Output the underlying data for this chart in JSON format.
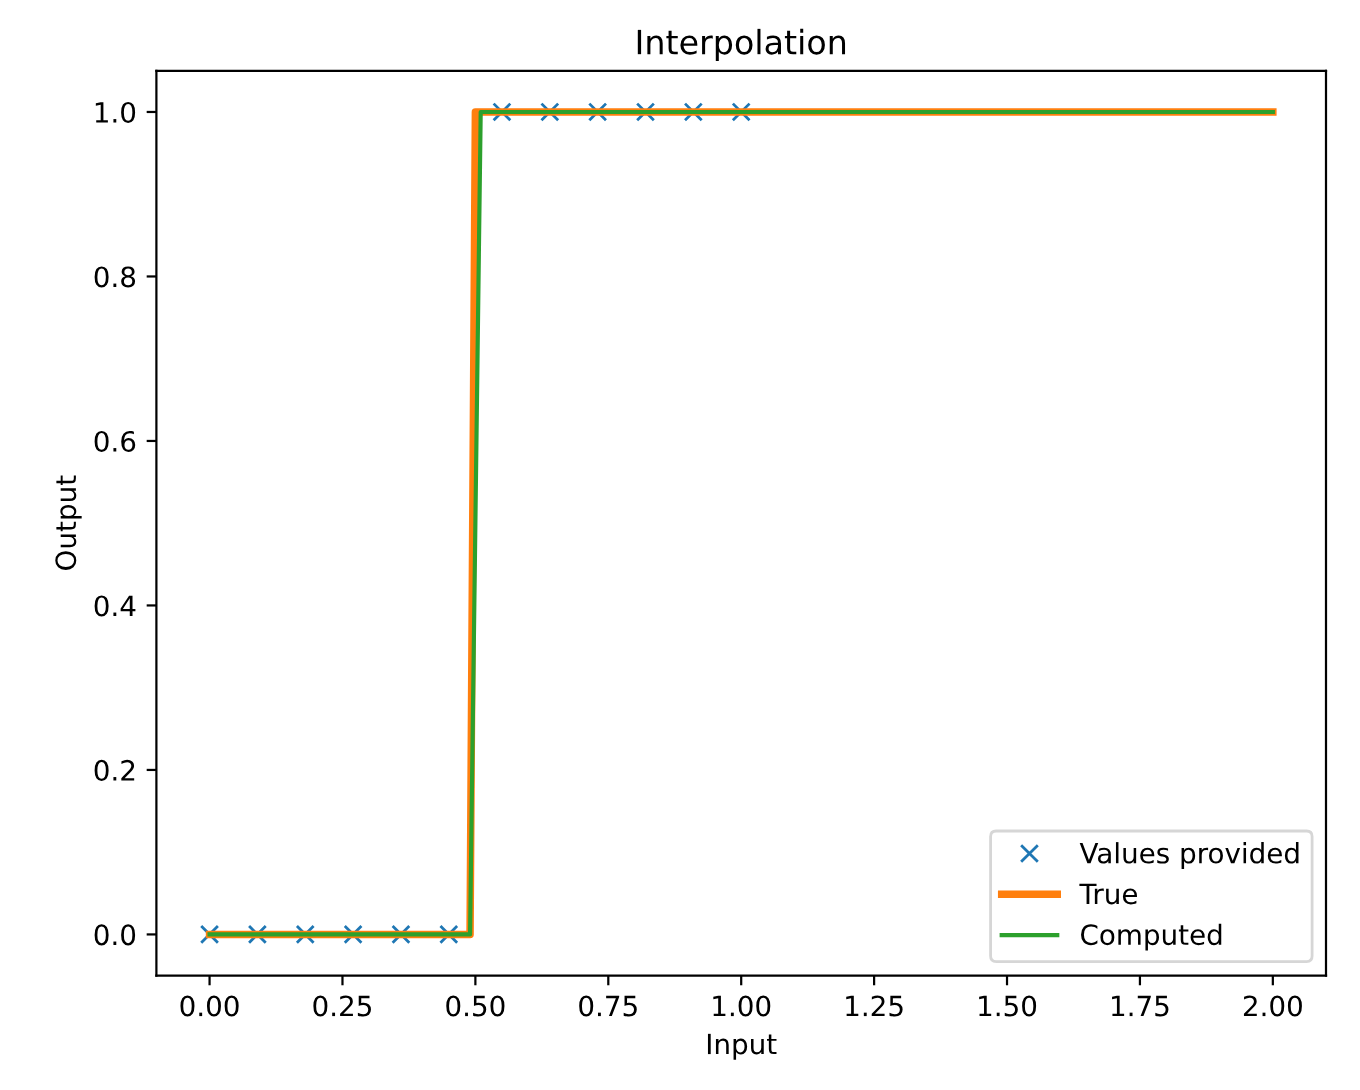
{
  "chart_data": {
    "type": "line",
    "title": "Interpolation",
    "xlabel": "Input",
    "ylabel": "Output",
    "xlim": [
      -0.1,
      2.1
    ],
    "ylim": [
      -0.05,
      1.05
    ],
    "xticks": [
      {
        "value": 0,
        "label": "0.00"
      },
      {
        "value": 0.25,
        "label": "0.25"
      },
      {
        "value": 0.5,
        "label": "0.50"
      },
      {
        "value": 0.75,
        "label": "0.75"
      },
      {
        "value": 1,
        "label": "1.00"
      },
      {
        "value": 1.25,
        "label": "1.25"
      },
      {
        "value": 1.5,
        "label": "1.50"
      },
      {
        "value": 1.75,
        "label": "1.75"
      },
      {
        "value": 2,
        "label": "2.00"
      }
    ],
    "yticks": [
      {
        "value": 0,
        "label": "0.0"
      },
      {
        "value": 0.2,
        "label": "0.2"
      },
      {
        "value": 0.4,
        "label": "0.4"
      },
      {
        "value": 0.6,
        "label": "0.6"
      },
      {
        "value": 0.8,
        "label": "0.8"
      },
      {
        "value": 1,
        "label": "1.0"
      }
    ],
    "legend": "bottom right",
    "grid": false,
    "series": [
      {
        "name": "Values provided",
        "type": "scatter",
        "marker": "cross",
        "color": "#1f77b4",
        "x": [
          0,
          0.09,
          0.18,
          0.27,
          0.36,
          0.45,
          0.55,
          0.64,
          0.73,
          0.82,
          0.91,
          1.0
        ],
        "values": [
          0,
          0,
          0,
          0,
          0,
          0,
          1,
          1,
          1,
          1,
          1,
          1
        ]
      },
      {
        "name": "True",
        "color": "#ff7f0e",
        "x": [
          0,
          0.49,
          0.5,
          2
        ],
        "values": [
          0,
          0,
          1,
          1
        ]
      },
      {
        "name": "Computed",
        "color": "#2ca02c",
        "x": [
          0,
          0.49,
          0.51,
          2
        ],
        "values": [
          0,
          0,
          1,
          1
        ]
      }
    ]
  }
}
